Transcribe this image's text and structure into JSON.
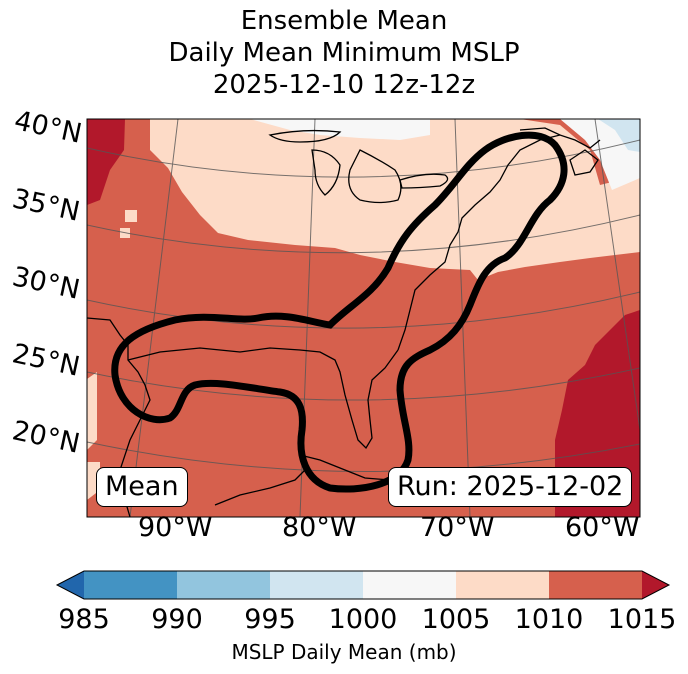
{
  "title": {
    "line1": "Ensemble Mean",
    "line2": "Daily Mean Minimum MSLP",
    "line3": "2025-12-10 12z-12z"
  },
  "map": {
    "lat_labels": [
      "40°N",
      "35°N",
      "30°N",
      "25°N",
      "20°N"
    ],
    "lon_labels": [
      "90°W",
      "80°W",
      "70°W",
      "60°W"
    ],
    "mean_badge": "Mean",
    "run_badge": "Run: 2025-12-02"
  },
  "colorbar": {
    "ticks": [
      "985",
      "990",
      "995",
      "1000",
      "1005",
      "1010",
      "1015"
    ],
    "label": "MSLP Daily Mean (mb)",
    "colors": [
      "#2166ac",
      "#4393c3",
      "#92c5de",
      "#d1e5f0",
      "#f7f7f7",
      "#fddbc7",
      "#d6604d",
      "#b2182b"
    ]
  }
}
